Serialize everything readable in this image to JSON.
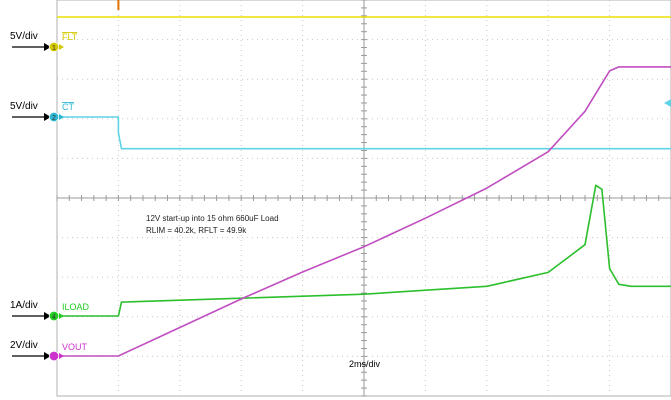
{
  "chart_data": {
    "type": "line",
    "title": "",
    "xlabel": "",
    "ylabel": "",
    "timebase": "2ms/div",
    "xlim": [
      0,
      20
    ],
    "x_unit": "ms",
    "annotation": [
      "12V start-up into 15 ohm 660uF Load",
      "RLIM = 40.2k, RFLT = 49.9k"
    ],
    "grid": true,
    "channels": [
      {
        "name": "FLT",
        "overline": true,
        "number": "1",
        "scale": "5V/div",
        "color": "#e8e000",
        "label_color": "#d4c800",
        "x": [
          0,
          20
        ],
        "div": [
          7.53,
          7.53
        ]
      },
      {
        "name": "CT",
        "overline": true,
        "number": "2",
        "scale": "5V/div",
        "color": "#5fd3e6",
        "label_color": "#2fb8d4",
        "x": [
          0,
          2.0,
          2.0,
          2.1,
          20
        ],
        "div": [
          5.9,
          5.9,
          5.5,
          5.1,
          5.1
        ]
      },
      {
        "name": "ILOAD",
        "overline": false,
        "number": "4",
        "scale": "1A/div",
        "color": "#2cbf2c",
        "label_color": "#22cc22",
        "x": [
          0,
          2.0,
          2.1,
          6,
          10,
          14,
          16,
          17.2,
          17.55,
          17.75,
          18.0,
          18.3,
          18.7,
          20
        ],
        "div": [
          0,
          0,
          0.35,
          0.45,
          0.55,
          0.75,
          1.1,
          1.8,
          3.3,
          3.2,
          1.2,
          0.8,
          0.75,
          0.75
        ]
      },
      {
        "name": "VOUT",
        "overline": false,
        "number": "",
        "scale": "2V/div",
        "color": "#c04ec0",
        "label_color": "#cc33cc",
        "x": [
          0,
          2.0,
          4,
          6,
          8,
          10,
          12,
          14,
          16,
          17.2,
          18.0,
          18.3,
          20
        ],
        "div": [
          0,
          0,
          0.72,
          1.44,
          2.12,
          2.76,
          3.48,
          4.24,
          5.16,
          6.18,
          7.2,
          7.3,
          7.3
        ]
      }
    ]
  }
}
